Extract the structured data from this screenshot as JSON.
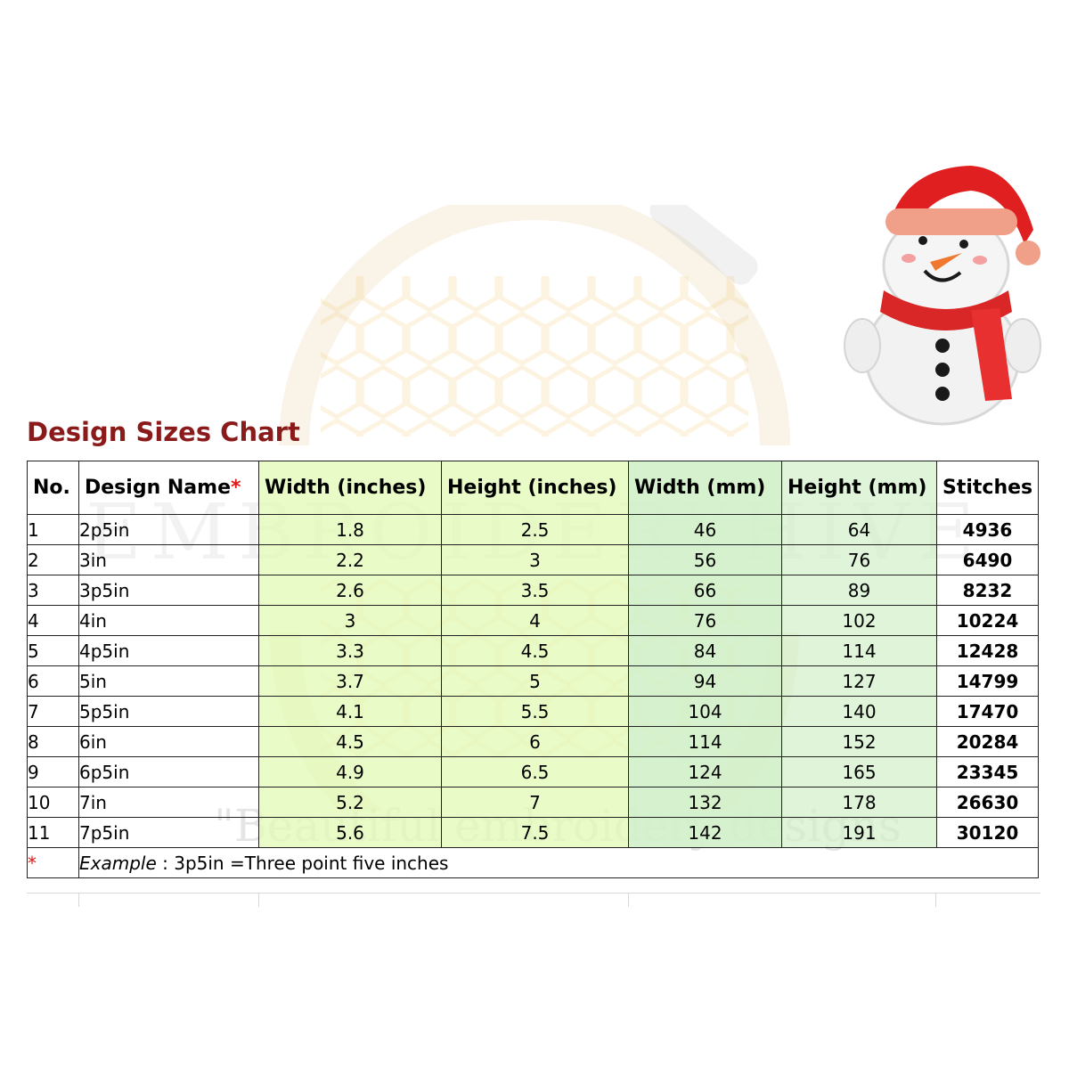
{
  "title": "Design Sizes Chart",
  "watermark": {
    "brand": "EMBROIDERYHIVE",
    "tagline": "\"Beautiful embroidery designs"
  },
  "table": {
    "headers": {
      "no": "No.",
      "design_name": "Design Name",
      "design_name_star": "*",
      "width_in": "Width (inches)",
      "height_in": "Height (inches)",
      "width_mm": "Width (mm)",
      "height_mm": "Height (mm)",
      "stitches": "Stitches"
    },
    "rows": [
      {
        "no": "1",
        "name": "2p5in",
        "width_in": "1.8",
        "height_in": "2.5",
        "width_mm": "46",
        "height_mm": "64",
        "stitches": "4936"
      },
      {
        "no": "2",
        "name": "3in",
        "width_in": "2.2",
        "height_in": "3",
        "width_mm": "56",
        "height_mm": "76",
        "stitches": "6490"
      },
      {
        "no": "3",
        "name": "3p5in",
        "width_in": "2.6",
        "height_in": "3.5",
        "width_mm": "66",
        "height_mm": "89",
        "stitches": "8232"
      },
      {
        "no": "4",
        "name": "4in",
        "width_in": "3",
        "height_in": "4",
        "width_mm": "76",
        "height_mm": "102",
        "stitches": "10224"
      },
      {
        "no": "5",
        "name": "4p5in",
        "width_in": "3.3",
        "height_in": "4.5",
        "width_mm": "84",
        "height_mm": "114",
        "stitches": "12428"
      },
      {
        "no": "6",
        "name": "5in",
        "width_in": "3.7",
        "height_in": "5",
        "width_mm": "94",
        "height_mm": "127",
        "stitches": "14799"
      },
      {
        "no": "7",
        "name": "5p5in",
        "width_in": "4.1",
        "height_in": "5.5",
        "width_mm": "104",
        "height_mm": "140",
        "stitches": "17470"
      },
      {
        "no": "8",
        "name": "6in",
        "width_in": "4.5",
        "height_in": "6",
        "width_mm": "114",
        "height_mm": "152",
        "stitches": "20284"
      },
      {
        "no": "9",
        "name": "6p5in",
        "width_in": "4.9",
        "height_in": "6.5",
        "width_mm": "124",
        "height_mm": "165",
        "stitches": "23345"
      },
      {
        "no": "10",
        "name": "7in",
        "width_in": "5.2",
        "height_in": "7",
        "width_mm": "132",
        "height_mm": "178",
        "stitches": "26630"
      },
      {
        "no": "11",
        "name": "7p5in",
        "width_in": "5.6",
        "height_in": "7.5",
        "width_mm": "142",
        "height_mm": "191",
        "stitches": "30120"
      }
    ],
    "footnote": {
      "star": "*",
      "label": "Example",
      "text": " : 3p5in =Three point five inches"
    }
  },
  "colors": {
    "title": "#8b1a1a",
    "star": "#e01818",
    "inches_fill": "#e2fab4",
    "mm_fill": "#d2f0c8"
  },
  "illustration": "snowman-icon"
}
